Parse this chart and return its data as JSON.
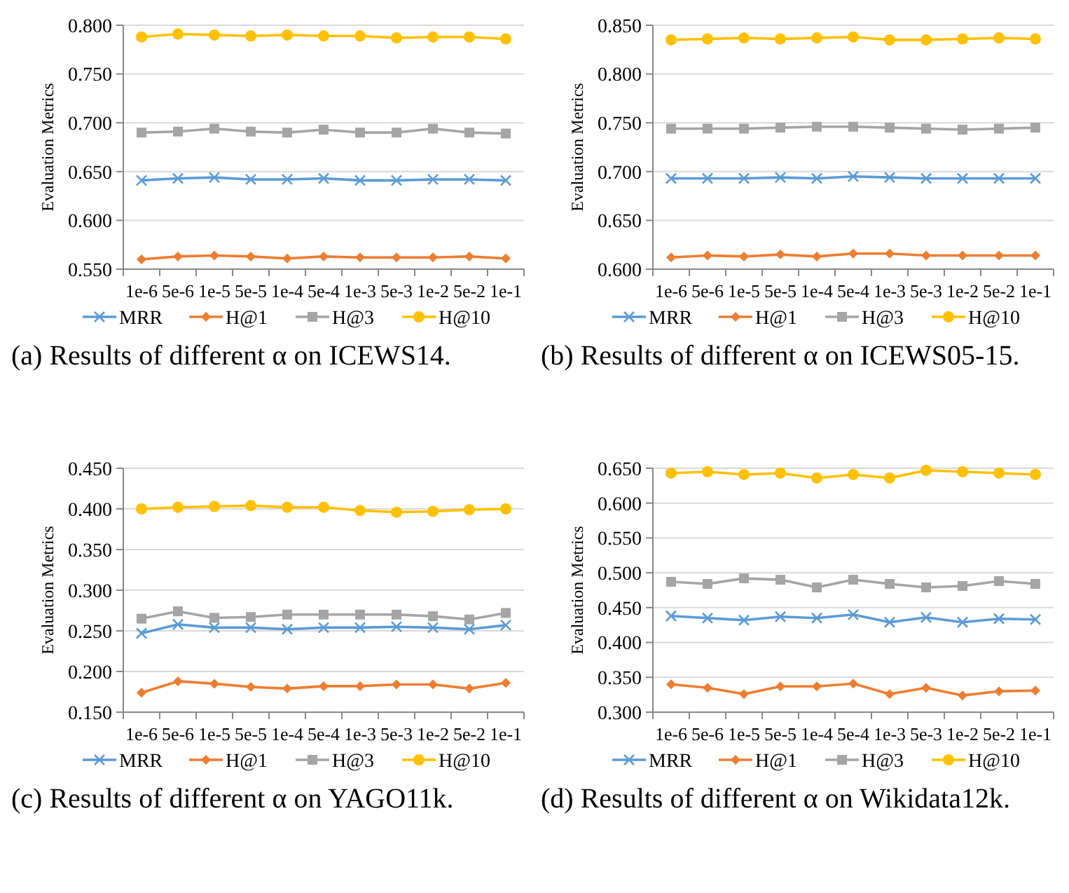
{
  "chart_data": [
    {
      "type": "line",
      "title": "(a) Results of different α on ICEWS14.",
      "ylabel": "Evaluation Metrics",
      "categories": [
        "1e-6",
        "5e-6",
        "1e-5",
        "5e-5",
        "1e-4",
        "5e-4",
        "1e-3",
        "5e-3",
        "1e-2",
        "5e-2",
        "1e-1"
      ],
      "ylim": [
        0.55,
        0.8
      ],
      "yticks": [
        {
          "value": 0.55,
          "label": "0.550"
        },
        {
          "value": 0.6,
          "label": "0.600"
        },
        {
          "value": 0.65,
          "label": "0.650"
        },
        {
          "value": 0.7,
          "label": "0.700"
        },
        {
          "value": 0.75,
          "label": "0.750"
        },
        {
          "value": 0.8,
          "label": "0.800"
        }
      ],
      "grid": "y",
      "legend": "bottom",
      "series": [
        {
          "name": "MRR",
          "color": "#5b9bd5",
          "marker": "cross",
          "values": [
            0.641,
            0.643,
            0.644,
            0.642,
            0.642,
            0.643,
            0.641,
            0.641,
            0.642,
            0.642,
            0.641
          ]
        },
        {
          "name": "H@1",
          "color": "#ed7d31",
          "marker": "diamond",
          "values": [
            0.56,
            0.563,
            0.564,
            0.563,
            0.561,
            0.563,
            0.562,
            0.562,
            0.562,
            0.563,
            0.561
          ]
        },
        {
          "name": "H@3",
          "color": "#a5a5a5",
          "marker": "square",
          "values": [
            0.69,
            0.691,
            0.694,
            0.691,
            0.69,
            0.693,
            0.69,
            0.69,
            0.694,
            0.69,
            0.689
          ]
        },
        {
          "name": "H@10",
          "color": "#ffc000",
          "marker": "circle",
          "values": [
            0.788,
            0.791,
            0.79,
            0.789,
            0.79,
            0.789,
            0.789,
            0.787,
            0.788,
            0.788,
            0.786
          ]
        }
      ]
    },
    {
      "type": "line",
      "title": "(b) Results of different α on ICEWS05-15.",
      "ylabel": "Evaluation Metrics",
      "categories": [
        "1e-6",
        "5e-6",
        "1e-5",
        "5e-5",
        "1e-4",
        "5e-4",
        "1e-3",
        "5e-3",
        "1e-2",
        "5e-2",
        "1e-1"
      ],
      "ylim": [
        0.6,
        0.85
      ],
      "yticks": [
        {
          "value": 0.6,
          "label": "0.600"
        },
        {
          "value": 0.65,
          "label": "0.650"
        },
        {
          "value": 0.7,
          "label": "0.700"
        },
        {
          "value": 0.75,
          "label": "0.750"
        },
        {
          "value": 0.8,
          "label": "0.800"
        },
        {
          "value": 0.85,
          "label": "0.850"
        }
      ],
      "grid": "y",
      "legend": "bottom",
      "series": [
        {
          "name": "MRR",
          "color": "#5b9bd5",
          "marker": "cross",
          "values": [
            0.693,
            0.693,
            0.693,
            0.694,
            0.693,
            0.695,
            0.694,
            0.693,
            0.693,
            0.693,
            0.693
          ]
        },
        {
          "name": "H@1",
          "color": "#ed7d31",
          "marker": "diamond",
          "values": [
            0.612,
            0.614,
            0.613,
            0.615,
            0.613,
            0.616,
            0.616,
            0.614,
            0.614,
            0.614,
            0.614
          ]
        },
        {
          "name": "H@3",
          "color": "#a5a5a5",
          "marker": "square",
          "values": [
            0.744,
            0.744,
            0.744,
            0.745,
            0.746,
            0.746,
            0.745,
            0.744,
            0.743,
            0.744,
            0.745
          ]
        },
        {
          "name": "H@10",
          "color": "#ffc000",
          "marker": "circle",
          "values": [
            0.835,
            0.836,
            0.837,
            0.836,
            0.837,
            0.838,
            0.835,
            0.835,
            0.836,
            0.837,
            0.836
          ]
        }
      ]
    },
    {
      "type": "line",
      "title": "(c) Results of different α on YAGO11k.",
      "ylabel": "Evaluation Metrics",
      "categories": [
        "1e-6",
        "5e-6",
        "1e-5",
        "5e-5",
        "1e-4",
        "5e-4",
        "1e-3",
        "5e-3",
        "1e-2",
        "5e-2",
        "1e-1"
      ],
      "ylim": [
        0.15,
        0.45
      ],
      "yticks": [
        {
          "value": 0.15,
          "label": "0.150"
        },
        {
          "value": 0.2,
          "label": "0.200"
        },
        {
          "value": 0.25,
          "label": "0.250"
        },
        {
          "value": 0.3,
          "label": "0.300"
        },
        {
          "value": 0.35,
          "label": "0.350"
        },
        {
          "value": 0.4,
          "label": "0.400"
        },
        {
          "value": 0.45,
          "label": "0.450"
        }
      ],
      "grid": "y",
      "legend": "bottom",
      "series": [
        {
          "name": "MRR",
          "color": "#5b9bd5",
          "marker": "cross",
          "values": [
            0.247,
            0.258,
            0.254,
            0.254,
            0.252,
            0.254,
            0.254,
            0.255,
            0.254,
            0.252,
            0.257
          ]
        },
        {
          "name": "H@1",
          "color": "#ed7d31",
          "marker": "diamond",
          "values": [
            0.174,
            0.188,
            0.185,
            0.181,
            0.179,
            0.182,
            0.182,
            0.184,
            0.184,
            0.179,
            0.186
          ]
        },
        {
          "name": "H@3",
          "color": "#a5a5a5",
          "marker": "square",
          "values": [
            0.265,
            0.274,
            0.266,
            0.267,
            0.27,
            0.27,
            0.27,
            0.27,
            0.268,
            0.264,
            0.272
          ]
        },
        {
          "name": "H@10",
          "color": "#ffc000",
          "marker": "circle",
          "values": [
            0.4,
            0.402,
            0.403,
            0.404,
            0.402,
            0.402,
            0.398,
            0.396,
            0.397,
            0.399,
            0.4
          ]
        }
      ]
    },
    {
      "type": "line",
      "title": "(d) Results of different α on Wikidata12k.",
      "ylabel": "Evaluation Metrics",
      "categories": [
        "1e-6",
        "5e-6",
        "1e-5",
        "5e-5",
        "1e-4",
        "5e-4",
        "1e-3",
        "5e-3",
        "1e-2",
        "5e-2",
        "1e-1"
      ],
      "ylim": [
        0.3,
        0.65
      ],
      "yticks": [
        {
          "value": 0.3,
          "label": "0.300"
        },
        {
          "value": 0.35,
          "label": "0.350"
        },
        {
          "value": 0.4,
          "label": "0.400"
        },
        {
          "value": 0.45,
          "label": "0.450"
        },
        {
          "value": 0.5,
          "label": "0.500"
        },
        {
          "value": 0.55,
          "label": "0.550"
        },
        {
          "value": 0.6,
          "label": "0.600"
        },
        {
          "value": 0.65,
          "label": "0.650"
        }
      ],
      "grid": "y",
      "legend": "bottom",
      "series": [
        {
          "name": "MRR",
          "color": "#5b9bd5",
          "marker": "cross",
          "values": [
            0.438,
            0.435,
            0.432,
            0.437,
            0.435,
            0.44,
            0.429,
            0.436,
            0.429,
            0.434,
            0.433
          ]
        },
        {
          "name": "H@1",
          "color": "#ed7d31",
          "marker": "diamond",
          "values": [
            0.34,
            0.335,
            0.326,
            0.337,
            0.337,
            0.341,
            0.326,
            0.335,
            0.324,
            0.33,
            0.331
          ]
        },
        {
          "name": "H@3",
          "color": "#a5a5a5",
          "marker": "square",
          "values": [
            0.487,
            0.484,
            0.492,
            0.49,
            0.479,
            0.49,
            0.484,
            0.479,
            0.481,
            0.488,
            0.484
          ]
        },
        {
          "name": "H@10",
          "color": "#ffc000",
          "marker": "circle",
          "values": [
            0.643,
            0.645,
            0.641,
            0.643,
            0.636,
            0.641,
            0.636,
            0.647,
            0.645,
            0.643,
            0.641
          ]
        }
      ]
    }
  ]
}
